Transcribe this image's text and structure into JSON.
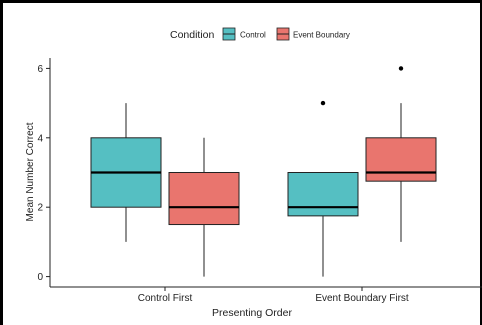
{
  "chart_data": {
    "type": "boxplot",
    "title": "",
    "xlabel": "Presenting Order",
    "ylabel": "Mean Number Correct",
    "categories": [
      "Control First",
      "Event Boundary First"
    ],
    "ylim": [
      -0.3,
      6.3
    ],
    "yticks": [
      0,
      2,
      4,
      6
    ],
    "grid": false,
    "legend": {
      "title": "Condition",
      "position": "top"
    },
    "series": [
      {
        "name": "Control",
        "color": "#55BFC2",
        "boxes": [
          {
            "min": 1,
            "q1": 2,
            "median": 3,
            "q3": 4,
            "max": 5,
            "outliers": []
          },
          {
            "min": 0,
            "q1": 1.75,
            "median": 2,
            "q3": 3,
            "max": 3,
            "outliers": [
              5
            ]
          }
        ]
      },
      {
        "name": "Event Boundary",
        "color": "#E9756E",
        "boxes": [
          {
            "min": 0,
            "q1": 1.5,
            "median": 2,
            "q3": 3,
            "max": 4,
            "outliers": []
          },
          {
            "min": 1,
            "q1": 2.75,
            "median": 3,
            "q3": 4,
            "max": 5,
            "outliers": [
              6
            ]
          }
        ]
      }
    ]
  }
}
